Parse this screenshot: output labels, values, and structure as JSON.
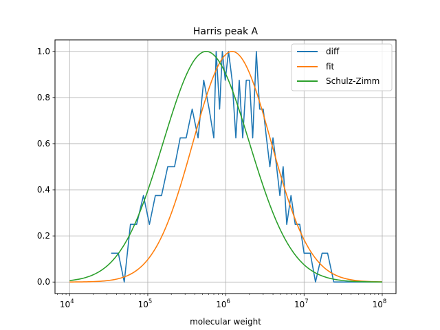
{
  "chart_data": {
    "type": "line",
    "title": "Harris peak A",
    "xlabel": "molecular weight",
    "ylabel": "",
    "x_scale": "log",
    "xlim": [
      6500,
      150000000
    ],
    "ylim": [
      -0.05,
      1.05
    ],
    "grid": true,
    "legend_position": "top-right",
    "x_ticks": [
      {
        "value": 10000,
        "base": "10",
        "exp": "4"
      },
      {
        "value": 100000,
        "base": "10",
        "exp": "5"
      },
      {
        "value": 1000000,
        "base": "10",
        "exp": "6"
      },
      {
        "value": 10000000,
        "base": "10",
        "exp": "7"
      },
      {
        "value": 100000000,
        "base": "10",
        "exp": "8"
      }
    ],
    "y_ticks": [
      {
        "value": 0.0,
        "label": "0.0"
      },
      {
        "value": 0.2,
        "label": "0.2"
      },
      {
        "value": 0.4,
        "label": "0.4"
      },
      {
        "value": 0.6,
        "label": "0.6"
      },
      {
        "value": 0.8,
        "label": "0.8"
      },
      {
        "value": 1.0,
        "label": "1.0"
      }
    ],
    "series": [
      {
        "name": "diff",
        "color": "#1f77b4",
        "style": "points",
        "points": [
          [
            34000,
            0.125
          ],
          [
            42000,
            0.125
          ],
          [
            50000,
            0.0
          ],
          [
            60000,
            0.25
          ],
          [
            72000,
            0.25
          ],
          [
            88000,
            0.375
          ],
          [
            105000,
            0.25
          ],
          [
            125000,
            0.375
          ],
          [
            150000,
            0.375
          ],
          [
            180000,
            0.5
          ],
          [
            220000,
            0.5
          ],
          [
            260000,
            0.625
          ],
          [
            310000,
            0.625
          ],
          [
            370000,
            0.75
          ],
          [
            440000,
            0.625
          ],
          [
            520000,
            0.875
          ],
          [
            610000,
            0.75
          ],
          [
            700000,
            0.625
          ],
          [
            750000,
            1.0
          ],
          [
            830000,
            0.75
          ],
          [
            900000,
            1.0
          ],
          [
            980000,
            0.875
          ],
          [
            1080000,
            1.0
          ],
          [
            1200000,
            0.875
          ],
          [
            1340000,
            0.625
          ],
          [
            1480000,
            0.875
          ],
          [
            1640000,
            0.625
          ],
          [
            1820000,
            0.875
          ],
          [
            2000000,
            0.875
          ],
          [
            2200000,
            0.625
          ],
          [
            2450000,
            1.0
          ],
          [
            2700000,
            0.75
          ],
          [
            3000000,
            0.75
          ],
          [
            3300000,
            0.625
          ],
          [
            3650000,
            0.5
          ],
          [
            4000000,
            0.625
          ],
          [
            4450000,
            0.5
          ],
          [
            4900000,
            0.375
          ],
          [
            5400000,
            0.5
          ],
          [
            6000000,
            0.25
          ],
          [
            6800000,
            0.375
          ],
          [
            7700000,
            0.25
          ],
          [
            8800000,
            0.25
          ],
          [
            10000000,
            0.125
          ],
          [
            12000000,
            0.125
          ],
          [
            14000000,
            0.0
          ],
          [
            17000000,
            0.125
          ],
          [
            20000000,
            0.125
          ],
          [
            24000000,
            0.0
          ],
          [
            29000000,
            0.0
          ],
          [
            35000000,
            0.0
          ],
          [
            100000000,
            0.0
          ]
        ]
      },
      {
        "name": "fit",
        "color": "#ff7f0e",
        "style": "lognormal",
        "x_start": 10000,
        "x_end": 100000000,
        "peak_x": 1200000,
        "sigma_log10": 0.5
      },
      {
        "name": "Schulz-Zimm",
        "color": "#2ca02c",
        "style": "lognormal",
        "x_start": 10000,
        "x_end": 100000000,
        "peak_x": 560000,
        "sigma_log10": 0.55
      }
    ]
  }
}
